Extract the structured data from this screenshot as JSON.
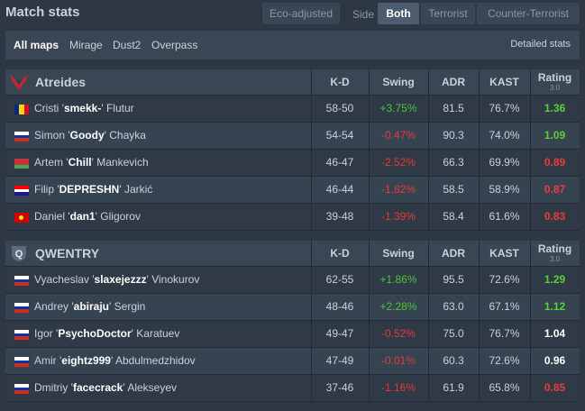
{
  "header": {
    "title": "Match stats",
    "eco_label": "Eco-adjusted",
    "side_label": "Side",
    "both_label": "Both",
    "terrorist_label": "Terrorist",
    "ct_label": "Counter-Terrorist"
  },
  "maps": {
    "items": [
      "All maps",
      "Mirage",
      "Dust2",
      "Overpass"
    ],
    "detailed": "Detailed stats"
  },
  "columns": {
    "kd": "K-D",
    "swing": "Swing",
    "adr": "ADR",
    "kast": "KAST",
    "rating": "Rating",
    "rating_sub": "3.0"
  },
  "teams": [
    {
      "name": "Atreides",
      "logo_icon": "atreides-hawk-icon",
      "players": [
        {
          "flag": "ro",
          "first": "Cristi",
          "nick": "smekk-",
          "last": "Flutur",
          "kd": "58-50",
          "swing": "+3.75%",
          "adr": "81.5",
          "kast": "76.7%",
          "rating": "1.36"
        },
        {
          "flag": "ru",
          "first": "Simon",
          "nick": "Goody",
          "last": "Chayka",
          "kd": "54-54",
          "swing": "-0.47%",
          "adr": "90.3",
          "kast": "74.0%",
          "rating": "1.09"
        },
        {
          "flag": "by",
          "first": "Artem",
          "nick": "Chill",
          "last": "Mankevich",
          "kd": "46-47",
          "swing": "-2.52%",
          "adr": "66.3",
          "kast": "69.9%",
          "rating": "0.89"
        },
        {
          "flag": "hr",
          "first": "Filip",
          "nick": "DEPRESHN",
          "last": "Jarkić",
          "kd": "46-44",
          "swing": "-1.82%",
          "adr": "58.5",
          "kast": "58.9%",
          "rating": "0.87"
        },
        {
          "flag": "mk",
          "first": "Daniel",
          "nick": "dan1",
          "last": "Gligorov",
          "kd": "39-48",
          "swing": "-1.39%",
          "adr": "58.4",
          "kast": "61.6%",
          "rating": "0.83"
        }
      ]
    },
    {
      "name": "QWENTRY",
      "logo_icon": "qwentry-shield-icon",
      "players": [
        {
          "flag": "ru",
          "first": "Vyacheslav",
          "nick": "slaxejezzz",
          "last": "Vinokurov",
          "kd": "62-55",
          "swing": "+1.86%",
          "adr": "95.5",
          "kast": "72.6%",
          "rating": "1.29"
        },
        {
          "flag": "ru",
          "first": "Andrey",
          "nick": "abiraju",
          "last": "Sergin",
          "kd": "48-46",
          "swing": "+2.28%",
          "adr": "63.0",
          "kast": "67.1%",
          "rating": "1.12"
        },
        {
          "flag": "ru",
          "first": "Igor",
          "nick": "PsychoDoctor",
          "last": "Karatuev",
          "kd": "49-47",
          "swing": "-0.52%",
          "adr": "75.0",
          "kast": "76.7%",
          "rating": "1.04"
        },
        {
          "flag": "ru",
          "first": "Amir",
          "nick": "eightz999",
          "last": "Abdulmedzhidov",
          "kd": "47-49",
          "swing": "-0.01%",
          "adr": "60.3",
          "kast": "72.6%",
          "rating": "0.96"
        },
        {
          "flag": "ru",
          "first": "Dmitriy",
          "nick": "facecrack",
          "last": "Alekseyev",
          "kd": "37-46",
          "swing": "-1.16%",
          "adr": "61.9",
          "kast": "65.8%",
          "rating": "0.85"
        }
      ]
    }
  ],
  "colors": {
    "positive": "#4cc33b",
    "negative": "#e23b3b",
    "rating_good": "#5ad13a",
    "rating_bad": "#ee3a3a"
  }
}
